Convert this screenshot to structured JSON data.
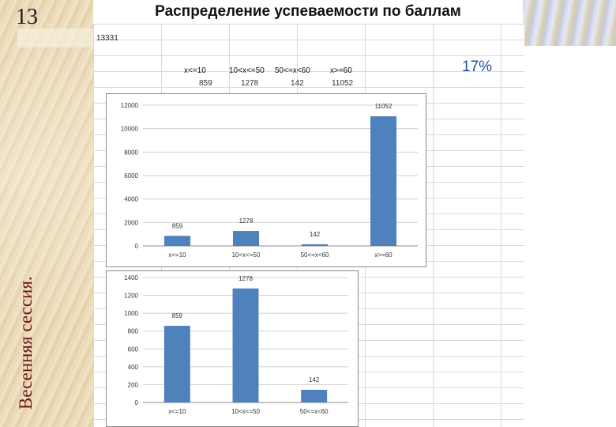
{
  "slide": {
    "number": "13",
    "side_title": "Весенняя сессия.",
    "title": "Распределение успеваемости по баллам",
    "total": "13331",
    "percent": "17%"
  },
  "table": {
    "headers": [
      "x<=10",
      "10<x<=50",
      "50<=x<60",
      "x>=60"
    ],
    "values": [
      "859",
      "1278",
      "142",
      "11052"
    ]
  },
  "colors": {
    "bar": "#4f81bd",
    "title_side": "#6b1414",
    "percent": "#1f4e9c"
  },
  "chart_data": [
    {
      "type": "bar",
      "categories": [
        "x<=10",
        "10<x<=50",
        "50<=x<60",
        "x>=60"
      ],
      "values": [
        859,
        1278,
        142,
        11052
      ],
      "data_labels": [
        "859",
        "1278",
        "142",
        "11052"
      ],
      "y_ticks": [
        0,
        2000,
        4000,
        6000,
        8000,
        10000,
        12000
      ],
      "ylim": [
        0,
        12000
      ],
      "grid": true
    },
    {
      "type": "bar",
      "categories": [
        "x<=10",
        "10<x<=50",
        "50<=x<60"
      ],
      "values": [
        859,
        1278,
        142
      ],
      "data_labels": [
        "859",
        "1278",
        "142"
      ],
      "y_ticks": [
        0,
        200,
        400,
        600,
        800,
        1000,
        1200,
        1400
      ],
      "ylim": [
        0,
        1400
      ],
      "grid": true
    }
  ]
}
